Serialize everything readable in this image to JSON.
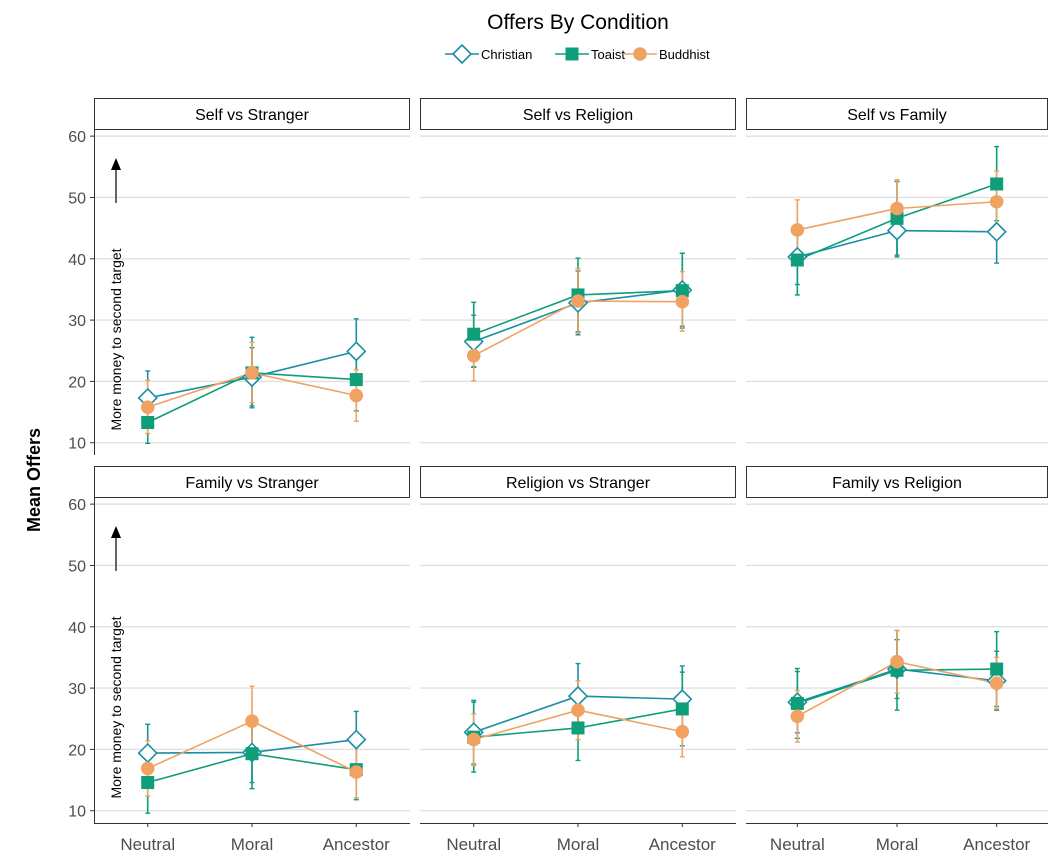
{
  "chart_data": {
    "type": "line",
    "title": "Offers By Condition",
    "ylabel": "Mean Offers",
    "xlabel": "",
    "categories": [
      "Neutral",
      "Moral",
      "Ancestor"
    ],
    "ylim": [
      8,
      61
    ],
    "yticks": [
      10,
      20,
      30,
      40,
      50,
      60
    ],
    "grid": true,
    "legend_position": "top",
    "legend": [
      {
        "name": "Christian",
        "color": "#1a8fa3",
        "marker": "open-diamond"
      },
      {
        "name": "Toaist",
        "color": "#0f9e7a",
        "marker": "filled-square"
      },
      {
        "name": "Buddhist",
        "color": "#f0a262",
        "marker": "filled-circle"
      }
    ],
    "annotation": "More money to second target",
    "panels": [
      {
        "title": "Self vs Stranger",
        "series": [
          {
            "name": "Christian",
            "values": [
              17.3,
              20.7,
              24.9
            ],
            "err_low": [
              13,
              16,
              20
            ],
            "err_high": [
              21.7,
              25.5,
              30.2
            ]
          },
          {
            "name": "Toaist",
            "values": [
              13.3,
              21.4,
              20.3
            ],
            "err_low": [
              9.9,
              15.7,
              15.2
            ],
            "err_high": [
              16.7,
              27.2,
              25.4
            ]
          },
          {
            "name": "Buddhist",
            "values": [
              15.8,
              21.4,
              17.7
            ],
            "err_low": [
              11.5,
              16.5,
              13.5
            ],
            "err_high": [
              20.2,
              26.4,
              21.9
            ]
          }
        ]
      },
      {
        "title": "Self vs Religion",
        "series": [
          {
            "name": "Christian",
            "values": [
              26.5,
              32.8,
              34.9
            ],
            "err_low": [
              22.3,
              27.6,
              29
            ],
            "err_high": [
              30.8,
              38,
              40.9
            ]
          },
          {
            "name": "Toaist",
            "values": [
              27.7,
              34.1,
              34.8
            ],
            "err_low": [
              22.4,
              28.1,
              28.7
            ],
            "err_high": [
              32.9,
              40.1,
              40.9
            ]
          },
          {
            "name": "Buddhist",
            "values": [
              24.2,
              33.1,
              33.0
            ],
            "err_low": [
              20.1,
              27.9,
              28.2
            ],
            "err_high": [
              28.3,
              38.4,
              37.9
            ]
          }
        ]
      },
      {
        "title": "Self vs Family",
        "series": [
          {
            "name": "Christian",
            "values": [
              40.3,
              44.6,
              44.4
            ],
            "err_low": [
              35.8,
              40.3,
              39.3
            ],
            "err_high": [
              44.8,
              49,
              49.4
            ]
          },
          {
            "name": "Toaist",
            "values": [
              39.8,
              46.6,
              52.2
            ],
            "err_low": [
              34.1,
              40.6,
              46.2
            ],
            "err_high": [
              45.4,
              52.6,
              58.3
            ]
          },
          {
            "name": "Buddhist",
            "values": [
              44.7,
              48.2,
              49.3
            ],
            "err_low": [
              39.8,
              43.6,
              44.2
            ],
            "err_high": [
              49.6,
              52.9,
              54.3
            ]
          }
        ]
      },
      {
        "title": "Family vs Stranger",
        "series": [
          {
            "name": "Christian",
            "values": [
              19.4,
              19.5,
              21.6
            ],
            "err_low": [
              14.7,
              14.6,
              17
            ],
            "err_high": [
              24.1,
              24.4,
              26.2
            ]
          },
          {
            "name": "Toaist",
            "values": [
              14.6,
              19.3,
              16.7
            ],
            "err_low": [
              9.6,
              13.6,
              11.8
            ],
            "err_high": [
              19.6,
              25,
              21.6
            ]
          },
          {
            "name": "Buddhist",
            "values": [
              16.9,
              24.6,
              16.3
            ],
            "err_low": [
              12.4,
              19.1,
              12.1
            ],
            "err_high": [
              21.4,
              30.3,
              20.5
            ]
          }
        ]
      },
      {
        "title": "Religion vs Stranger",
        "series": [
          {
            "name": "Christian",
            "values": [
              22.8,
              28.7,
              28.2
            ],
            "err_low": [
              17.6,
              23.4,
              22.9
            ],
            "err_high": [
              28,
              34,
              33.6
            ]
          },
          {
            "name": "Toaist",
            "values": [
              22.0,
              23.5,
              26.6
            ],
            "err_low": [
              16.3,
              18.2,
              20.6
            ],
            "err_high": [
              27.7,
              28.8,
              32.6
            ]
          },
          {
            "name": "Buddhist",
            "values": [
              21.6,
              26.4,
              22.9
            ],
            "err_low": [
              17.4,
              21.6,
              18.8
            ],
            "err_high": [
              25.8,
              31.2,
              27
            ]
          }
        ]
      },
      {
        "title": "Family vs Religion",
        "series": [
          {
            "name": "Christian",
            "values": [
              27.7,
              33.1,
              31.2
            ],
            "err_low": [
              22.7,
              28.3,
              26.4
            ],
            "err_high": [
              32.7,
              37.9,
              36
            ]
          },
          {
            "name": "Toaist",
            "values": [
              27.5,
              32.9,
              33.1
            ],
            "err_low": [
              21.8,
              26.4,
              27
            ],
            "err_high": [
              33.2,
              39.4,
              39.2
            ]
          },
          {
            "name": "Buddhist",
            "values": [
              25.4,
              34.3,
              30.8
            ],
            "err_low": [
              21.2,
              29.2,
              26.6
            ],
            "err_high": [
              29.6,
              39.4,
              35
            ]
          }
        ]
      }
    ]
  }
}
